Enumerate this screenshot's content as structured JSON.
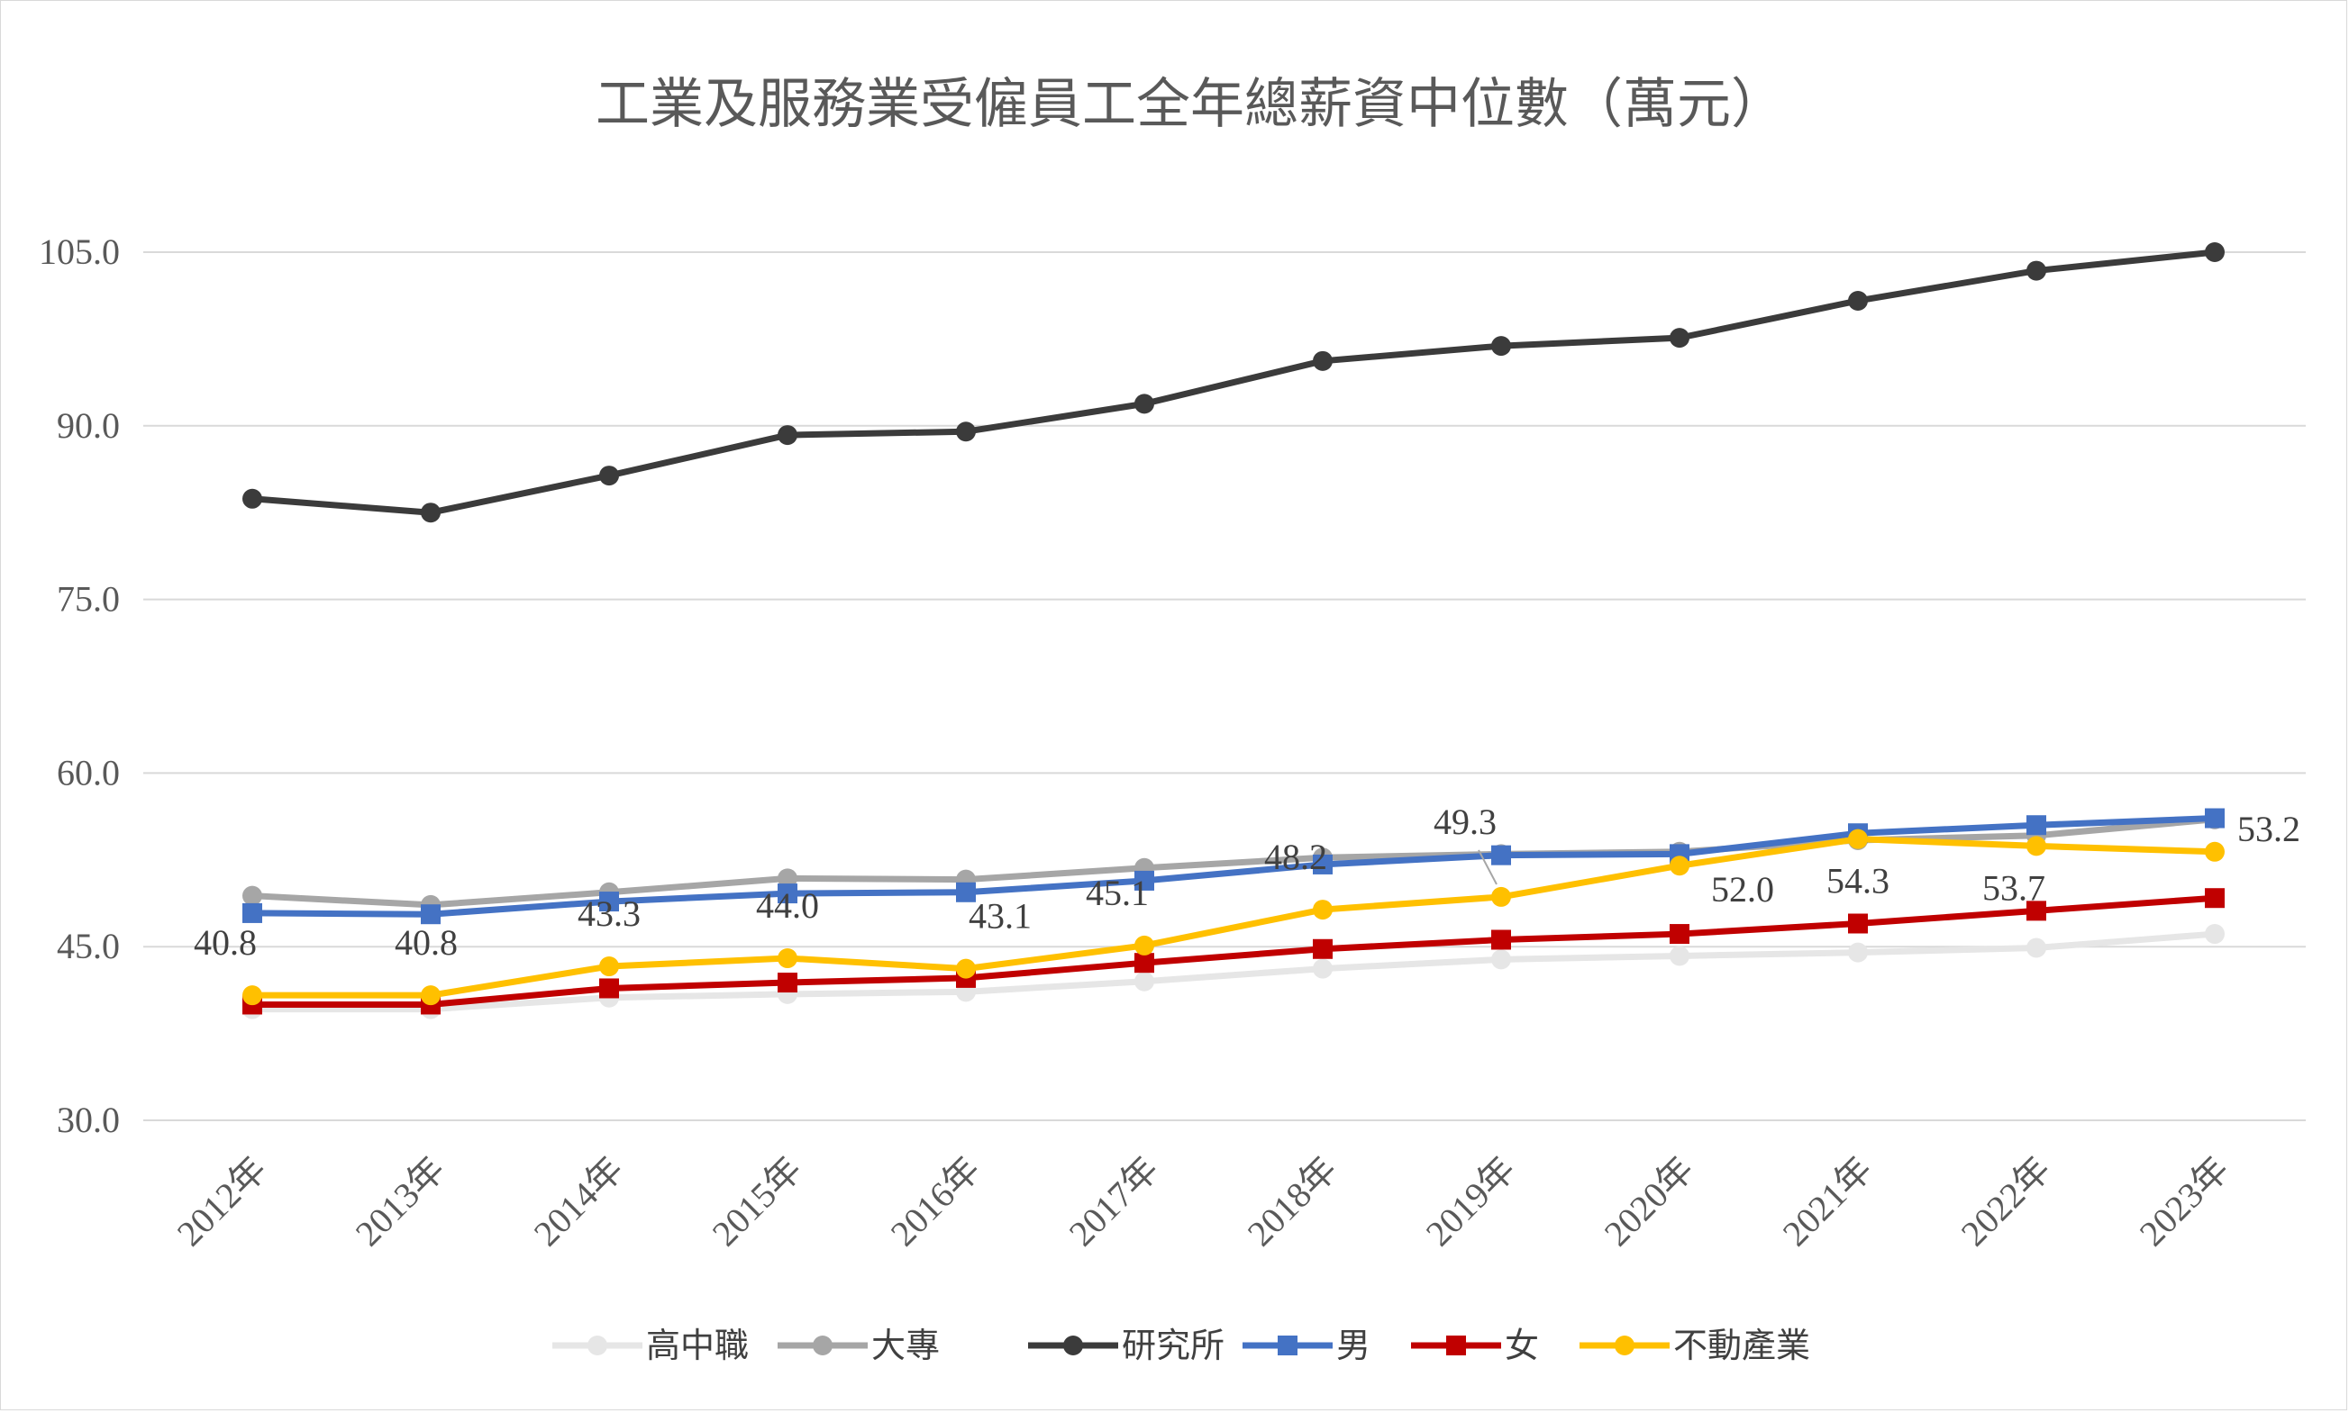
{
  "chart_data": {
    "type": "line",
    "title": "工業及服務業受僱員工全年總薪資中位數（萬元）",
    "xlabel": "",
    "ylabel": "",
    "ylim": [
      30,
      105
    ],
    "yticks": [
      "30.0",
      "45.0",
      "60.0",
      "75.0",
      "90.0",
      "105.0"
    ],
    "grid": true,
    "legend_position": "bottom",
    "categories": [
      "2012年",
      "2013年",
      "2014年",
      "2015年",
      "2016年",
      "2017年",
      "2018年",
      "2019年",
      "2020年",
      "2021年",
      "2022年",
      "2023年"
    ],
    "series": [
      {
        "name": "高中職",
        "color": "#e6e6e6",
        "marker": "circle",
        "values": [
          39.6,
          39.6,
          40.6,
          40.9,
          41.1,
          42.0,
          43.1,
          43.9,
          44.2,
          44.5,
          44.9,
          46.1
        ]
      },
      {
        "name": "大專",
        "color": "#a6a6a6",
        "marker": "circle",
        "values": [
          49.4,
          48.6,
          49.7,
          50.9,
          50.8,
          51.8,
          52.7,
          53.0,
          53.2,
          54.2,
          54.6,
          56.0
        ]
      },
      {
        "name": "研究所",
        "color": "#3b3b3b",
        "marker": "circle",
        "values": [
          83.7,
          82.5,
          85.7,
          89.2,
          89.5,
          91.9,
          95.6,
          96.9,
          97.6,
          100.8,
          103.4,
          105.0
        ]
      },
      {
        "name": "男",
        "color": "#4472c4",
        "marker": "square",
        "values": [
          47.9,
          47.8,
          48.9,
          49.6,
          49.7,
          50.7,
          52.1,
          52.9,
          53.0,
          54.8,
          55.5,
          56.1
        ]
      },
      {
        "name": "女",
        "color": "#c00000",
        "marker": "square",
        "values": [
          40.0,
          40.0,
          41.4,
          41.9,
          42.3,
          43.6,
          44.8,
          45.6,
          46.1,
          47.0,
          48.1,
          49.2
        ]
      },
      {
        "name": "不動產業",
        "color": "#ffc000",
        "marker": "circle",
        "values": [
          40.8,
          40.8,
          43.3,
          44.0,
          43.1,
          45.1,
          48.2,
          49.3,
          52.0,
          54.3,
          53.7,
          53.2
        ]
      }
    ],
    "data_labels": {
      "series": "不動產業",
      "labels": [
        "40.8",
        "40.8",
        "43.3",
        "44.0",
        "43.1",
        "45.1",
        "48.2",
        "49.3",
        "52.0",
        "54.3",
        "53.7",
        "53.2"
      ]
    }
  }
}
